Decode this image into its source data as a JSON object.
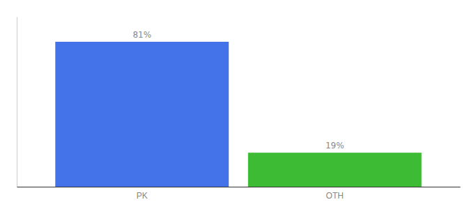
{
  "chart_data": {
    "type": "bar",
    "categories": [
      "PK",
      "OTH"
    ],
    "values": [
      81,
      19
    ],
    "colors": [
      "#4472e8",
      "#3dbb35"
    ],
    "ylim": [
      0,
      95
    ],
    "data_labels": true,
    "value_labels": [
      "81%",
      "19%"
    ],
    "tick_labels": "x"
  }
}
